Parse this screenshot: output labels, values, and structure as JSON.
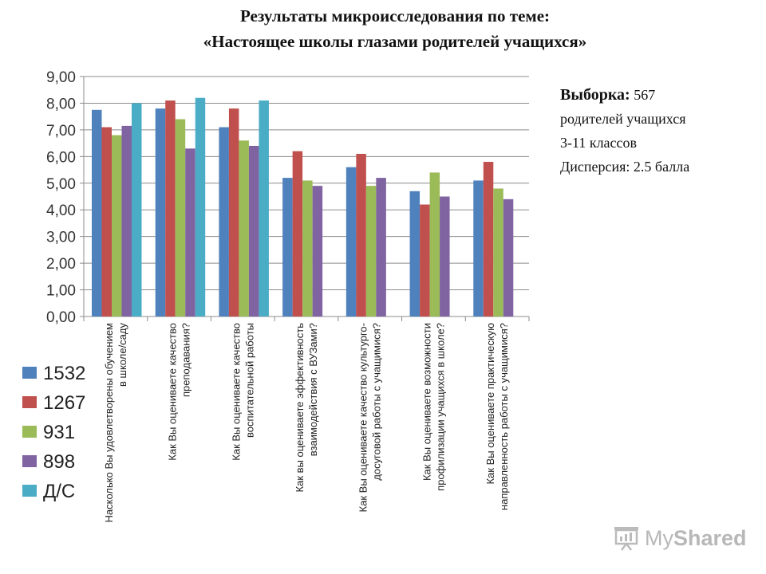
{
  "header": {
    "title_line1": "Результаты микроисследования по теме:",
    "title_line2": "«Настоящее школы глазами родителей учащихся»"
  },
  "info": {
    "sample_label": "Выборка:",
    "sample_value": "567",
    "line2": "родителей учащихся",
    "line3": "3-11 классов",
    "line4": "Дисперсия: 2.5 балла"
  },
  "watermark": {
    "text_my": "My",
    "text_shared": "Shared"
  },
  "chart_data": {
    "type": "bar",
    "ylim": [
      0,
      9
    ],
    "yticks": [
      "0,00",
      "1,00",
      "2,00",
      "3,00",
      "4,00",
      "5,00",
      "6,00",
      "7,00",
      "8,00",
      "9,00"
    ],
    "grid": true,
    "legend_position": "left-bottom",
    "categories": [
      [
        "Насколько Вы удовлетворены обучением",
        "в школе/саду"
      ],
      [
        "Как Вы оцениваете качество",
        "преподавания?"
      ],
      [
        "Как Вы оцениваете качество",
        "воспитательной работы"
      ],
      [
        "Как вы оцениваете эффективность",
        "взаимодействия с ВУЗами?"
      ],
      [
        "Как Вы оцениваете качество культурго-",
        "досуговой работы с учащимися?"
      ],
      [
        "Как Вы оцениваете возможности",
        "профилизации учащихся в школе?"
      ],
      [
        "Как Вы оцениваете практическую",
        "направленность работы с учащимися?"
      ]
    ],
    "series": [
      {
        "name": "1532",
        "color": "#4f81bd",
        "values": [
          7.75,
          7.8,
          7.1,
          5.2,
          5.6,
          4.7,
          5.1
        ]
      },
      {
        "name": "1267",
        "color": "#c0504d",
        "values": [
          7.1,
          8.1,
          7.8,
          6.2,
          6.1,
          4.2,
          5.8
        ]
      },
      {
        "name": "931",
        "color": "#9bbb59",
        "values": [
          6.8,
          7.4,
          6.6,
          5.1,
          4.9,
          5.4,
          4.8
        ]
      },
      {
        "name": "898",
        "color": "#8064a2",
        "values": [
          7.15,
          6.3,
          6.4,
          4.9,
          5.2,
          4.5,
          4.4
        ]
      },
      {
        "name": "Д/С",
        "color": "#4bacc6",
        "values": [
          8.0,
          8.2,
          8.1,
          null,
          null,
          null,
          null
        ]
      }
    ]
  }
}
